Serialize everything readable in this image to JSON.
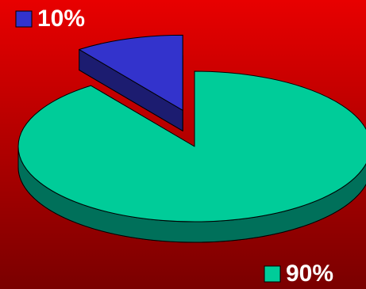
{
  "chart_data": {
    "type": "pie3d",
    "values": [
      10,
      90
    ],
    "value_labels": [
      "10%",
      "90%"
    ],
    "colors": [
      "#3333cc",
      "#00cc99"
    ],
    "side_colors": [
      "#1c1c70",
      "#00705a"
    ]
  }
}
